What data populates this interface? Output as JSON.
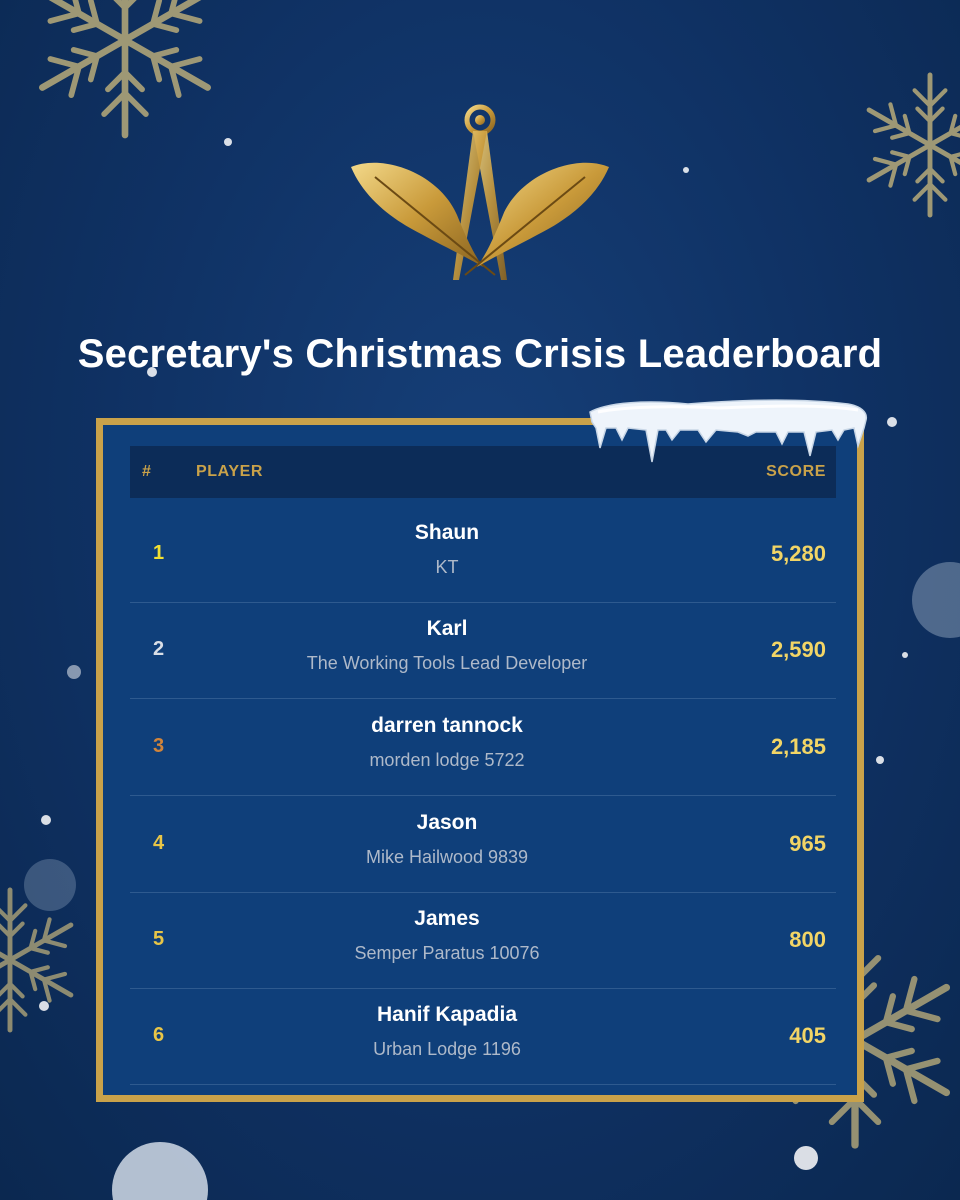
{
  "title": "Secretary's Christmas Crisis Leaderboard",
  "colors": {
    "background": "#0f3163",
    "gold": "#c9a24a",
    "panel": "#0f3f7a",
    "header_band": "#0c2c58",
    "score": "#f2d566",
    "rank_first": "#f2e032",
    "rank_second": "#d9dee6",
    "rank_third": "#d1843a",
    "rank_other": "#e8c547"
  },
  "icons": [
    "gold-compasses-quills-emblem",
    "snowflake-icon",
    "icicles-decoration"
  ],
  "table": {
    "header": {
      "rank": "#",
      "player": "PLAYER",
      "score": "SCORE"
    },
    "rows": [
      {
        "rank": "1",
        "name": "Shaun",
        "lodge": "KT",
        "score": "5,280"
      },
      {
        "rank": "2",
        "name": "Karl",
        "lodge": "The Working Tools Lead Developer",
        "score": "2,590"
      },
      {
        "rank": "3",
        "name": "darren tannock",
        "lodge": "morden lodge 5722",
        "score": "2,185"
      },
      {
        "rank": "4",
        "name": "Jason",
        "lodge": "Mike Hailwood 9839",
        "score": "965"
      },
      {
        "rank": "5",
        "name": "James",
        "lodge": "Semper Paratus 10076",
        "score": "800"
      },
      {
        "rank": "6",
        "name": "Hanif Kapadia",
        "lodge": "Urban Lodge 1196",
        "score": "405"
      }
    ]
  }
}
